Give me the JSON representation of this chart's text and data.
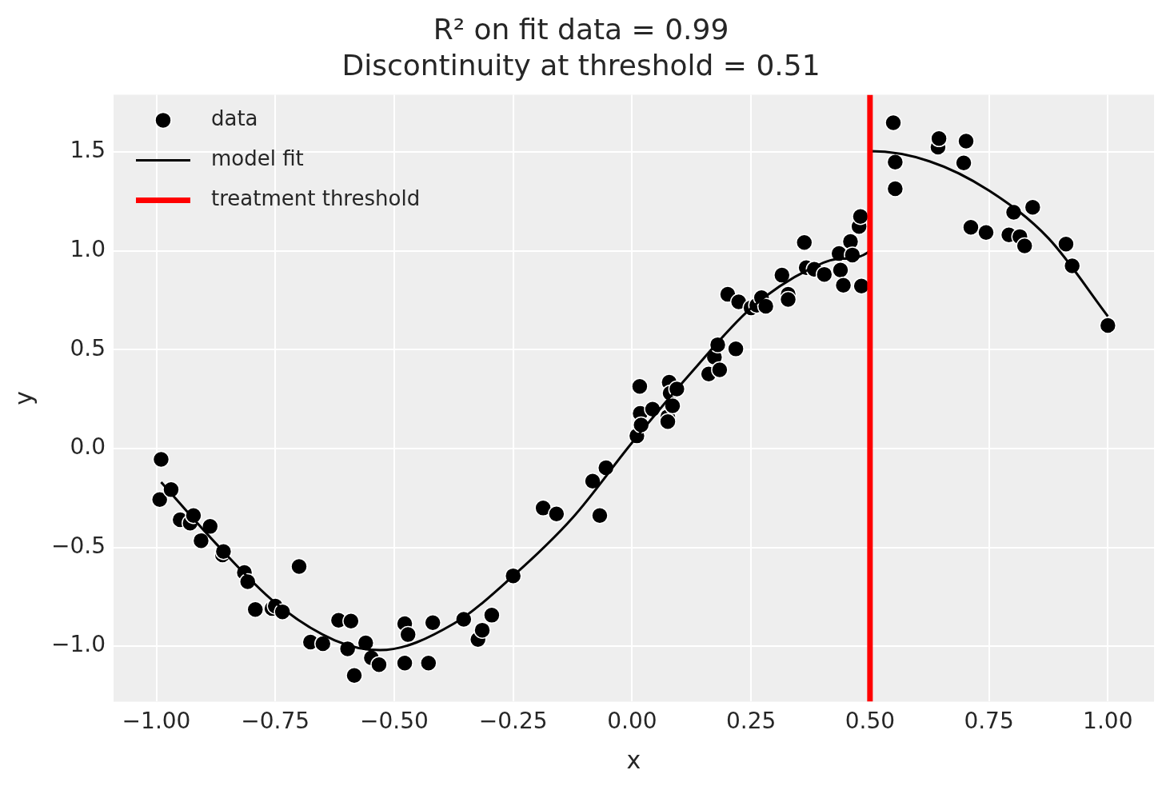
{
  "chart_data": {
    "type": "scatter",
    "title": "R² on fit data = 0.99",
    "subtitle": "Discontinuity at threshold = 0.51",
    "xlabel": "x",
    "ylabel": "y",
    "xlim": [
      -1.09,
      1.097
    ],
    "ylim": [
      -1.28,
      1.79
    ],
    "xticks": [
      {
        "value": -1,
        "label": "−1.00"
      },
      {
        "value": -0.75,
        "label": "−0.75"
      },
      {
        "value": -0.5,
        "label": "−0.50"
      },
      {
        "value": -0.25,
        "label": "−0.25"
      },
      {
        "value": 0,
        "label": "0.00"
      },
      {
        "value": 0.25,
        "label": "0.25"
      },
      {
        "value": 0.5,
        "label": "0.50"
      },
      {
        "value": 0.75,
        "label": "0.75"
      },
      {
        "value": 1,
        "label": "1.00"
      }
    ],
    "yticks": [
      {
        "value": -1,
        "label": "−1.0"
      },
      {
        "value": -0.5,
        "label": "−0.5"
      },
      {
        "value": 0,
        "label": "0.0"
      },
      {
        "value": 0.5,
        "label": "0.5"
      },
      {
        "value": 1,
        "label": "1.0"
      },
      {
        "value": 1.5,
        "label": "1.5"
      }
    ],
    "grid": true,
    "legend": "top left",
    "series": [
      {
        "name": "data",
        "marker": "circle",
        "color": "#000000",
        "x": [
          -0.993,
          -0.99,
          -0.969,
          -0.95,
          -0.929,
          -0.922,
          -0.906,
          -0.887,
          -0.861,
          -0.859,
          -0.815,
          -0.808,
          -0.792,
          -0.757,
          -0.75,
          -0.735,
          -0.7,
          -0.676,
          -0.65,
          -0.617,
          -0.591,
          -0.598,
          -0.584,
          -0.56,
          -0.548,
          -0.532,
          -0.478,
          -0.471,
          -0.478,
          -0.428,
          -0.419,
          -0.354,
          -0.324,
          -0.315,
          -0.295,
          -0.25,
          -0.187,
          -0.159,
          -0.083,
          -0.068,
          -0.055,
          0.01,
          0.016,
          0.017,
          0.019,
          0.043,
          0.075,
          0.078,
          0.08,
          0.085,
          0.094,
          0.075,
          0.161,
          0.173,
          0.18,
          0.184,
          0.201,
          0.218,
          0.224,
          0.25,
          0.262,
          0.272,
          0.281,
          0.315,
          0.328,
          0.328,
          0.362,
          0.366,
          0.383,
          0.404,
          0.438,
          0.435,
          0.444,
          0.459,
          0.463,
          0.477,
          0.48,
          0.482,
          0.549,
          0.553,
          0.553,
          0.643,
          0.645,
          0.697,
          0.702,
          0.712,
          0.744,
          0.792,
          0.802,
          0.815,
          0.825,
          0.842,
          0.912,
          0.925,
          1.0
        ],
        "values": [
          -0.258,
          -0.055,
          -0.208,
          -0.36,
          -0.377,
          -0.339,
          -0.466,
          -0.394,
          -0.538,
          -0.521,
          -0.627,
          -0.674,
          -0.814,
          -0.809,
          -0.797,
          -0.826,
          -0.597,
          -0.979,
          -0.987,
          -0.869,
          -0.873,
          -1.013,
          -1.148,
          -0.983,
          -1.059,
          -1.093,
          -0.886,
          -0.941,
          -1.085,
          -1.085,
          -0.881,
          -0.864,
          -0.966,
          -0.919,
          -0.843,
          -0.644,
          -0.301,
          -0.331,
          -0.165,
          -0.339,
          -0.097,
          0.064,
          0.314,
          0.178,
          0.119,
          0.199,
          0.161,
          0.335,
          0.28,
          0.216,
          0.301,
          0.136,
          0.377,
          0.462,
          0.525,
          0.398,
          0.78,
          0.504,
          0.742,
          0.712,
          0.725,
          0.763,
          0.72,
          0.877,
          0.78,
          0.754,
          1.042,
          0.915,
          0.907,
          0.881,
          0.903,
          0.987,
          0.826,
          1.047,
          0.979,
          1.123,
          1.174,
          0.822,
          1.648,
          1.449,
          1.314,
          1.525,
          1.568,
          1.445,
          1.555,
          1.119,
          1.093,
          1.081,
          1.195,
          1.072,
          1.025,
          1.22,
          1.034,
          0.924,
          0.623
        ]
      },
      {
        "name": "model fit",
        "type": "line",
        "marker": "none",
        "color": "#000000",
        "x": [
          -0.99,
          -0.875,
          -0.75,
          -0.625,
          -0.53,
          -0.375,
          -0.25,
          -0.125,
          0,
          0.125,
          0.25,
          0.375,
          0.44,
          0.5,
          0.501,
          0.625,
          0.75,
          0.875,
          1.0
        ],
        "values": [
          -0.17,
          -0.48,
          -0.78,
          -0.97,
          -1.02,
          -0.886,
          -0.644,
          -0.35,
          0.03,
          0.386,
          0.71,
          0.91,
          0.96,
          1.0,
          1.504,
          1.453,
          1.305,
          1.064,
          0.669
        ]
      },
      {
        "name": "treatment threshold",
        "type": "line",
        "marker": "none",
        "color": "#ff0000",
        "x": [
          0.5,
          0.5
        ],
        "values": [
          -1.28,
          1.79
        ]
      }
    ]
  }
}
